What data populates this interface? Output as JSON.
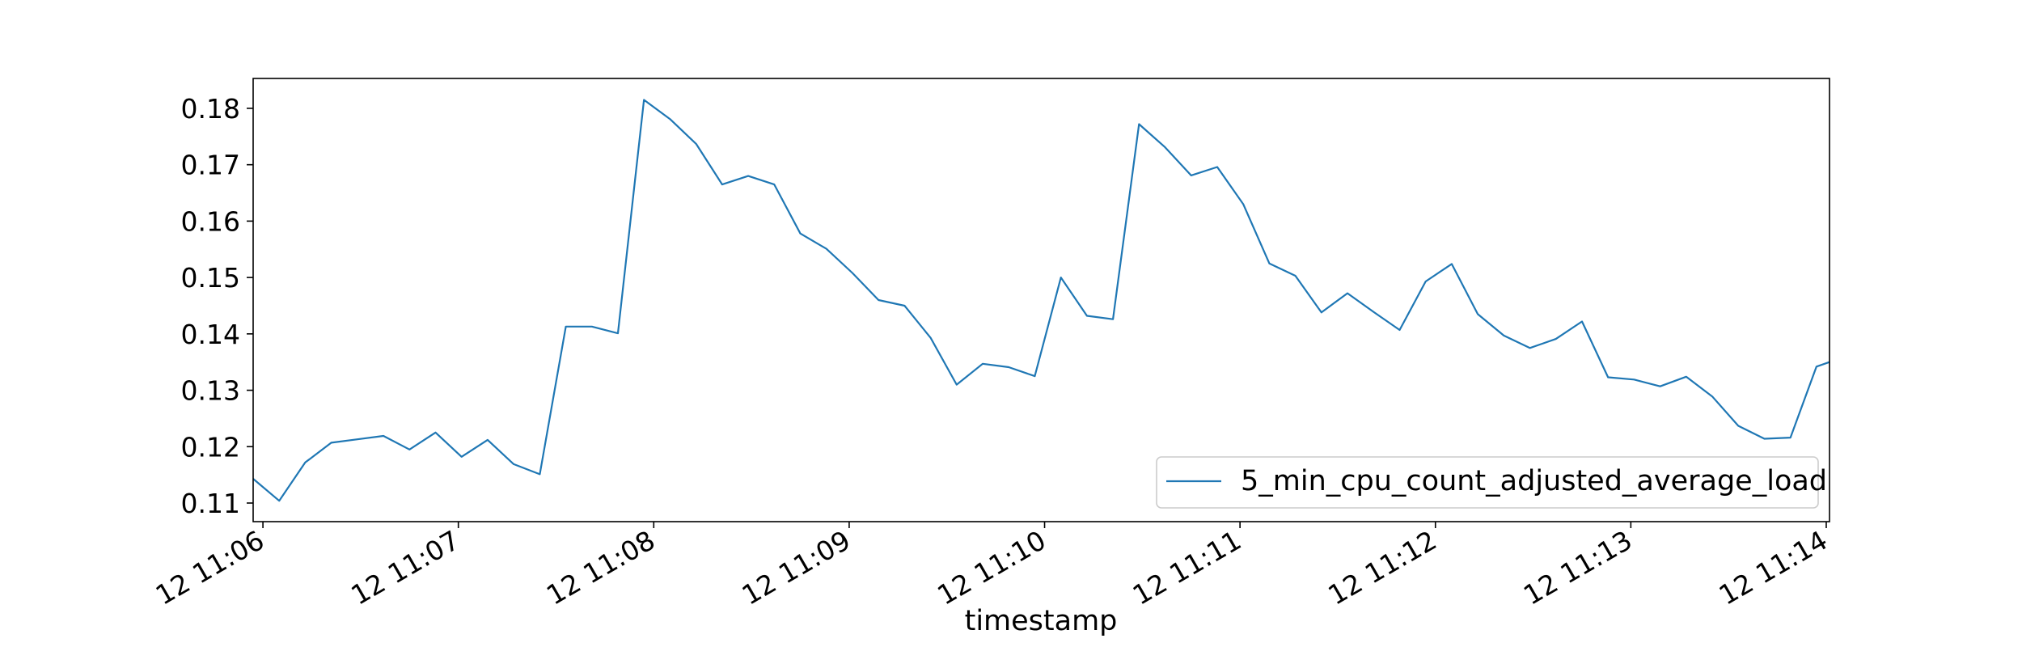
{
  "chart_data": {
    "type": "line",
    "xlabel": "timestamp",
    "ylabel": "",
    "x_tick_labels": [
      "12 11:06",
      "12 11:07",
      "12 11:08",
      "12 11:09",
      "12 11:10",
      "12 11:11",
      "12 11:12",
      "12 11:13",
      "12 11:14"
    ],
    "y_ticks": [
      0.11,
      0.12,
      0.13,
      0.14,
      0.15,
      0.16,
      0.17,
      0.18
    ],
    "xlim": [
      "11:05:57",
      "11:14:01"
    ],
    "ylim": [
      0.1067,
      0.1853
    ],
    "grid": false,
    "legend_position": "lower right",
    "series": [
      {
        "name": "5_min_cpu_count_adjusted_average_load",
        "color": "#1f77b4",
        "x": [
          "11:05:57",
          "11:06:05",
          "11:06:13",
          "11:06:21",
          "11:06:29",
          "11:06:37",
          "11:06:45",
          "11:06:53",
          "11:07:01",
          "11:07:09",
          "11:07:17",
          "11:07:25",
          "11:07:33",
          "11:07:41",
          "11:07:49",
          "11:07:57",
          "11:08:05",
          "11:08:13",
          "11:08:21",
          "11:08:29",
          "11:08:37",
          "11:08:45",
          "11:08:53",
          "11:09:01",
          "11:09:09",
          "11:09:17",
          "11:09:25",
          "11:09:33",
          "11:09:41",
          "11:09:49",
          "11:09:57",
          "11:10:05",
          "11:10:13",
          "11:10:21",
          "11:10:29",
          "11:10:37",
          "11:10:45",
          "11:10:53",
          "11:11:01",
          "11:11:09",
          "11:11:17",
          "11:11:25",
          "11:11:33",
          "11:11:41",
          "11:11:49",
          "11:11:57",
          "11:12:05",
          "11:12:13",
          "11:12:21",
          "11:12:29",
          "11:12:37",
          "11:12:45",
          "11:12:53",
          "11:13:01",
          "11:13:09",
          "11:13:17",
          "11:13:25",
          "11:13:33",
          "11:13:41",
          "11:13:49",
          "11:13:57",
          "11:14:01"
        ],
        "values": [
          0.1143,
          0.1104,
          0.1172,
          0.1207,
          0.1213,
          0.1219,
          0.1195,
          0.1225,
          0.1182,
          0.1212,
          0.1169,
          0.1151,
          0.1413,
          0.1413,
          0.1401,
          0.1815,
          0.1781,
          0.1737,
          0.1665,
          0.168,
          0.1665,
          0.1578,
          0.1551,
          0.1508,
          0.146,
          0.145,
          0.1393,
          0.131,
          0.1347,
          0.1341,
          0.1325,
          0.15,
          0.1432,
          0.1426,
          0.1772,
          0.1731,
          0.1681,
          0.1696,
          0.163,
          0.1525,
          0.1503,
          0.1438,
          0.1472,
          0.1439,
          0.1407,
          0.1493,
          0.1524,
          0.1435,
          0.1397,
          0.1375,
          0.1391,
          0.1422,
          0.1323,
          0.1319,
          0.1307,
          0.1324,
          0.1289,
          0.1237,
          0.1214,
          0.1216,
          0.1342,
          0.135
        ]
      }
    ]
  }
}
